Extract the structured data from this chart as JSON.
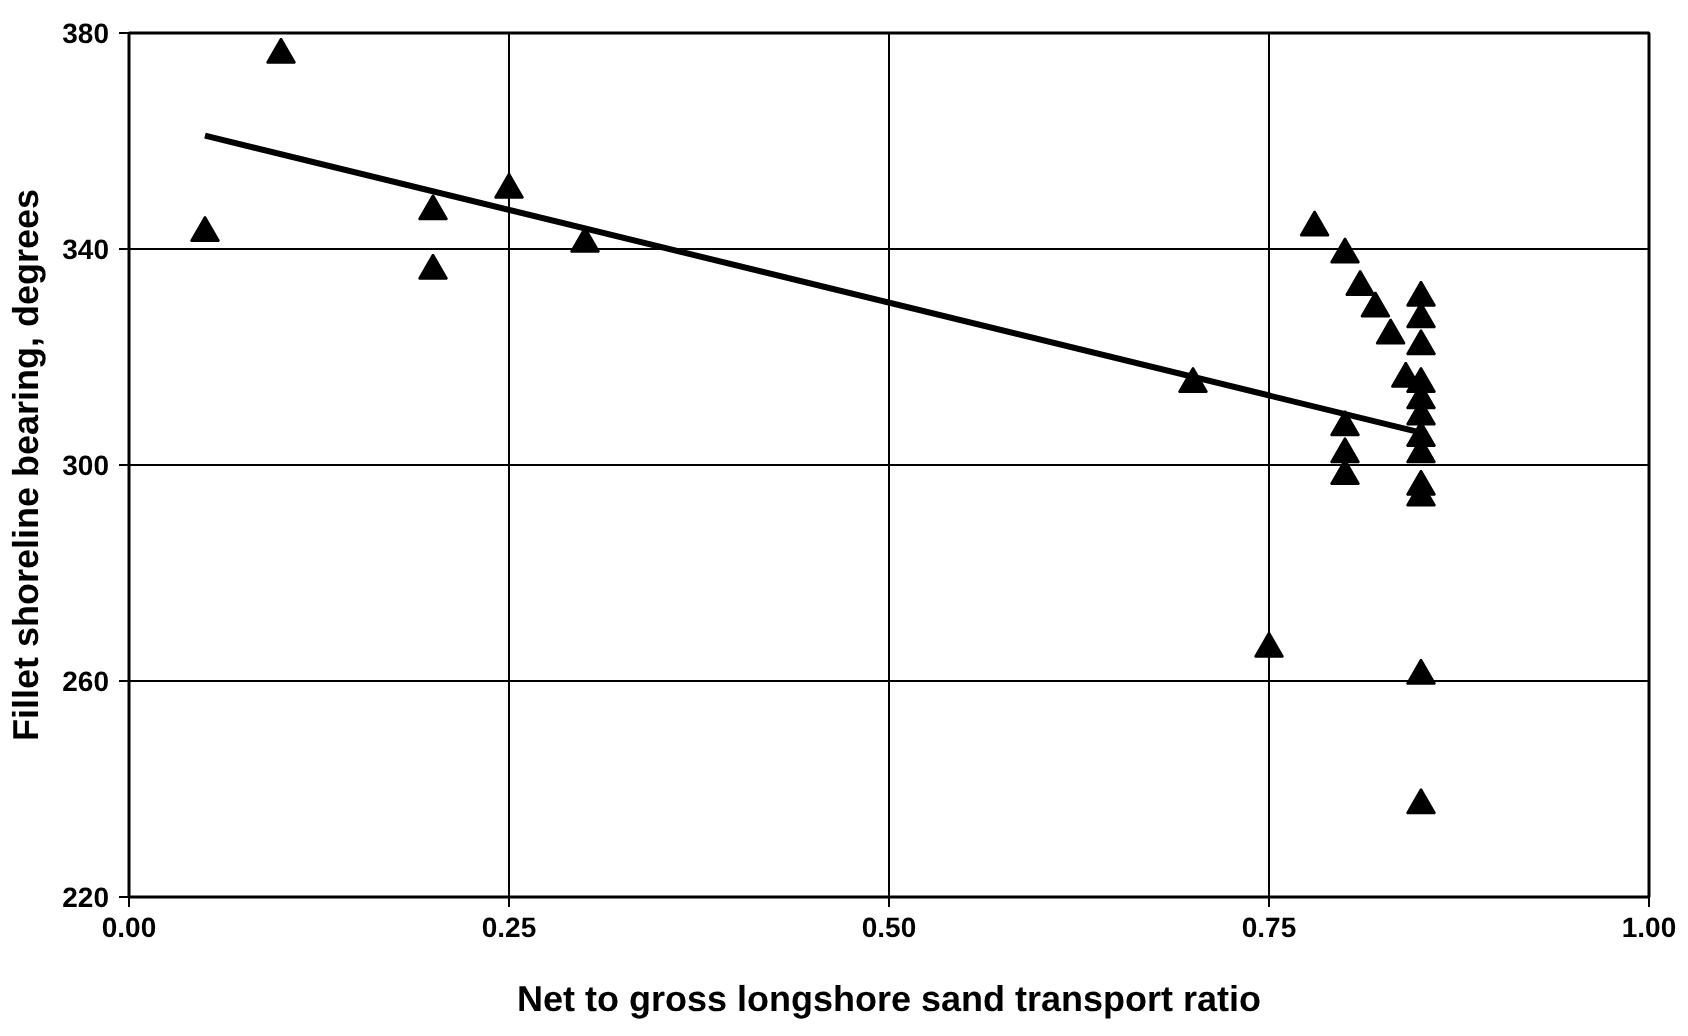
{
  "chart_data": {
    "type": "scatter",
    "xlabel": "Net to gross longshore sand transport ratio",
    "ylabel": "Fillet shoreline bearing, degrees",
    "xlim": [
      0,
      1
    ],
    "ylim": [
      220,
      380
    ],
    "xticks": [
      {
        "value": 0,
        "label": "0.00"
      },
      {
        "value": 0.25,
        "label": "0.25"
      },
      {
        "value": 0.5,
        "label": "0.50"
      },
      {
        "value": 0.75,
        "label": "0.75"
      },
      {
        "value": 1,
        "label": "1.00"
      }
    ],
    "yticks": [
      220,
      260,
      300,
      340,
      380
    ],
    "grid": true,
    "series": [
      {
        "marker": "triangle",
        "color": "#000000",
        "x": [
          0.05,
          0.1,
          0.2,
          0.2,
          0.25,
          0.3,
          0.7,
          0.75,
          0.78,
          0.8,
          0.8,
          0.8,
          0.8,
          0.81,
          0.82,
          0.83,
          0.84,
          0.85,
          0.85,
          0.85,
          0.85,
          0.85,
          0.85,
          0.85,
          0.85,
          0.85,
          0.85,
          0.85,
          0.85
        ],
        "values": [
          343,
          376,
          347,
          336,
          351,
          341,
          315,
          266,
          344,
          339,
          307,
          302,
          298,
          333,
          329,
          324,
          316,
          331,
          327,
          322,
          315,
          312,
          309,
          305,
          302,
          296,
          294,
          261,
          237
        ]
      },
      {
        "type": "line",
        "marker": "none",
        "color": "#000000",
        "x": [
          0.05,
          0.85
        ],
        "values": [
          361,
          306
        ]
      }
    ]
  }
}
